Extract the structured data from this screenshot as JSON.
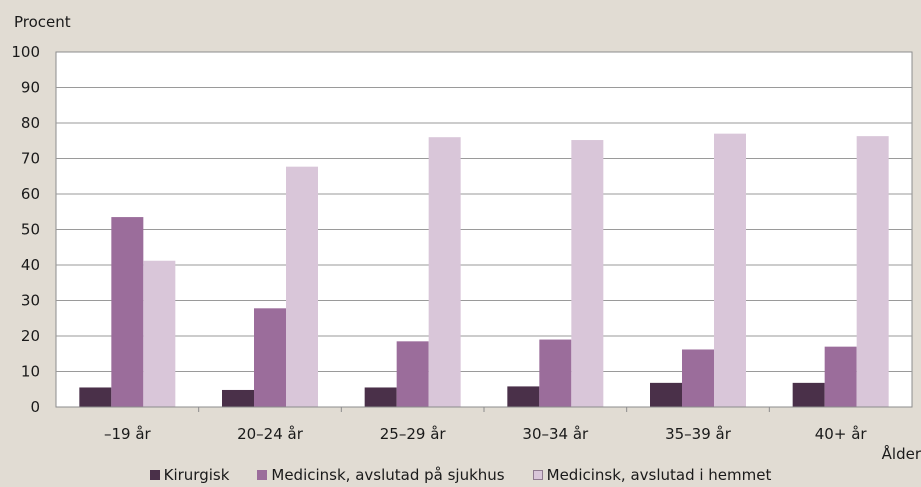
{
  "chart_data": {
    "type": "bar",
    "ylabel": "Procent",
    "xlabel": "Ålder",
    "ylim": [
      0,
      100
    ],
    "yticks": [
      "0",
      "10",
      "20",
      "30",
      "40",
      "50",
      "60",
      "70",
      "80",
      "90",
      "100"
    ],
    "grid": true,
    "legend_position": "bottom",
    "categories": [
      "–19 år",
      "20–24 år",
      "25–29 år",
      "30–34 år",
      "35–39 år",
      "40+ år"
    ],
    "series": [
      {
        "name": "Kirurgisk",
        "color": "#4a3049",
        "values": [
          5.5,
          4.8,
          5.5,
          5.8,
          6.8,
          6.8
        ]
      },
      {
        "name": "Medicinsk, avslutad på sjukhus",
        "color": "#9b6d9b",
        "values": [
          53.5,
          27.8,
          18.5,
          19.0,
          16.2,
          17.0
        ]
      },
      {
        "name": "Medicinsk, avslutad i hemmet",
        "color": "#d9c6d9",
        "values": [
          41.2,
          67.7,
          76.0,
          75.2,
          77.0,
          76.3
        ]
      }
    ]
  }
}
